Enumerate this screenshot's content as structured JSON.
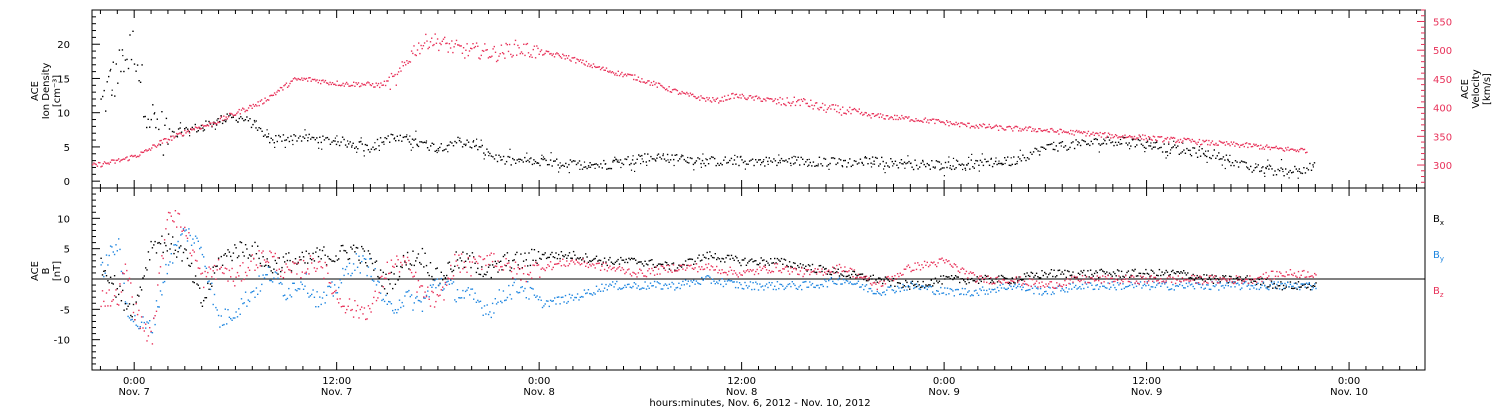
{
  "colors": {
    "black": "#000000",
    "red": "#e8325a",
    "blue": "#1f86e0"
  },
  "xaxis": {
    "label": "hours:minutes, Nov. 6, 2012 - Nov. 10, 2012",
    "ticks": [
      {
        "hours": 0,
        "time": "0:00",
        "day": "Nov. 7"
      },
      {
        "hours": 12,
        "time": "12:00",
        "day": "Nov. 7"
      },
      {
        "hours": 24,
        "time": "0:00",
        "day": "Nov. 8"
      },
      {
        "hours": 36,
        "time": "12:00",
        "day": "Nov. 8"
      },
      {
        "hours": 48,
        "time": "0:00",
        "day": "Nov. 9"
      },
      {
        "hours": 60,
        "time": "12:00",
        "day": "Nov. 9"
      },
      {
        "hours": 72,
        "time": "0:00",
        "day": "Nov. 10"
      }
    ]
  },
  "chart_data": [
    {
      "type": "scatter",
      "panel": "top",
      "xlim_hours": [
        -2.5,
        76.5
      ],
      "ylabel_left": [
        "ACE",
        "Ion Density",
        "[cm⁻³]"
      ],
      "ylabel_right": [
        "ACE",
        "Velocity",
        "[km/s]"
      ],
      "ylim_left": [
        -1,
        25
      ],
      "yticks_left": [
        0,
        5,
        10,
        15,
        20
      ],
      "ylim_right": [
        260,
        570
      ],
      "yticks_right": [
        300,
        350,
        400,
        450,
        500,
        550
      ],
      "series": [
        {
          "axis": "left",
          "color": "black",
          "x_hours": [
            -2,
            -1.5,
            -1,
            -0.5,
            0,
            0.5,
            1,
            1.5,
            2,
            3,
            4,
            5,
            6,
            7,
            8,
            9,
            10,
            11,
            12,
            13,
            14,
            15,
            16,
            17,
            18,
            19,
            20,
            21,
            22,
            23,
            24,
            26,
            28,
            30,
            32,
            34,
            36,
            38,
            40,
            42,
            44,
            46,
            48,
            50,
            52,
            54,
            56,
            58,
            60,
            62,
            64,
            66,
            68,
            70
          ],
          "values": [
            11,
            14,
            16,
            18,
            20,
            13,
            9,
            7.5,
            7,
            7.5,
            8,
            9,
            9.5,
            8.5,
            6,
            6.5,
            6.5,
            6,
            6,
            5.5,
            5,
            6.5,
            6,
            5.5,
            5,
            6,
            5.5,
            4,
            3,
            3,
            2.8,
            2.5,
            2.5,
            3.5,
            3.5,
            3,
            3,
            3,
            3,
            2.8,
            3,
            2.5,
            2.5,
            2.5,
            3,
            5,
            5.5,
            6,
            5.5,
            4.5,
            4,
            2,
            1.5,
            2.2
          ]
        },
        {
          "axis": "right",
          "color": "red",
          "x_hours": [
            -2.5,
            -1.5,
            -0.5,
            0.5,
            1.5,
            2.5,
            3.5,
            4.5,
            5.5,
            6.5,
            7.5,
            8.5,
            9.5,
            10.5,
            11.5,
            12.5,
            13.5,
            14.5,
            15.5,
            16.5,
            17.5,
            18.5,
            19.5,
            20.5,
            21.5,
            22.5,
            23.5,
            24.5,
            25.5,
            26.5,
            27.5,
            28.5,
            29.5,
            30.5,
            31.5,
            32.5,
            33.5,
            34.5,
            35.5,
            36.5,
            37.5,
            38.5,
            39.5,
            40.5,
            41.5,
            42.5,
            43.5,
            44.5,
            45.5,
            46.5,
            47.5,
            48.5,
            49.5,
            50.5,
            51.5,
            52.5,
            53.5,
            54.5,
            55.5,
            56.5,
            57.5,
            58.5,
            59.5,
            60.5,
            61.5,
            62.5,
            63.5,
            64.5,
            65.5,
            66.5,
            67.5,
            68.5,
            69.5
          ],
          "values": [
            300,
            305,
            312,
            322,
            340,
            352,
            365,
            372,
            385,
            398,
            410,
            430,
            450,
            450,
            445,
            442,
            442,
            440,
            450,
            500,
            520,
            510,
            500,
            500,
            495,
            505,
            500,
            495,
            490,
            480,
            470,
            462,
            455,
            445,
            435,
            425,
            418,
            413,
            422,
            418,
            415,
            410,
            412,
            402,
            398,
            393,
            388,
            385,
            383,
            380,
            377,
            373,
            370,
            368,
            365,
            364,
            363,
            360,
            358,
            356,
            353,
            351,
            350,
            347,
            345,
            343,
            340,
            338,
            336,
            334,
            330,
            328,
            327
          ]
        }
      ]
    },
    {
      "type": "scatter",
      "panel": "bottom",
      "xlim_hours": [
        -2.5,
        76.5
      ],
      "ylabel_left": [
        "ACE",
        "B",
        "[nT]"
      ],
      "ylim_left": [
        -15,
        15
      ],
      "yticks_left": [
        -10,
        -5,
        0,
        5,
        10
      ],
      "reference_line": 0,
      "series": [
        {
          "name": "B",
          "sub": "x",
          "color": "black",
          "x_hours": [
            -2,
            -1.5,
            -1,
            -0.5,
            0,
            1,
            2,
            3,
            4,
            5,
            6,
            7,
            8,
            9,
            10,
            11,
            12,
            13,
            14,
            15,
            16,
            17,
            18,
            19,
            20,
            21,
            22,
            23,
            24,
            26,
            28,
            30,
            32,
            34,
            36,
            38,
            40,
            42,
            44,
            46,
            48,
            50,
            52,
            54,
            56,
            58,
            60,
            62,
            64,
            66,
            68,
            70
          ],
          "values": [
            2,
            1,
            -2,
            -4,
            -5,
            6,
            6,
            4,
            -4,
            3,
            5,
            5,
            2,
            3,
            3,
            4,
            4,
            5,
            3,
            -1,
            3,
            4,
            0,
            3,
            3,
            1,
            3,
            3,
            4,
            4,
            3,
            3,
            2,
            4,
            3,
            3,
            2,
            1,
            0,
            -1,
            0,
            0,
            0,
            1,
            1,
            1,
            1,
            1,
            0,
            0,
            -1,
            -1
          ]
        },
        {
          "name": "B",
          "sub": "y",
          "color": "blue",
          "x_hours": [
            -2,
            -1.5,
            -1,
            -0.5,
            0,
            1,
            2,
            3,
            4,
            5,
            6,
            7,
            8,
            9,
            10,
            11,
            12,
            13,
            14,
            15,
            16,
            17,
            18,
            19,
            20,
            21,
            22,
            23,
            24,
            26,
            28,
            30,
            32,
            34,
            36,
            38,
            40,
            42,
            44,
            46,
            48,
            50,
            52,
            54,
            56,
            58,
            60,
            62,
            64,
            66,
            68,
            70
          ],
          "values": [
            1,
            4,
            6,
            -4,
            -7,
            -8,
            3,
            8,
            5,
            -7,
            -5,
            -2,
            1,
            -2,
            0,
            -4,
            -1,
            3,
            2,
            -5,
            -3,
            -4,
            0,
            -2,
            -3,
            -5,
            -2,
            -1,
            -4,
            -3,
            -1,
            -1,
            -1,
            0,
            -1,
            -1,
            -1,
            0,
            -2,
            -1,
            -2,
            -2,
            -1,
            -2,
            -1,
            -1,
            -1,
            -1,
            -1,
            -1,
            -1,
            -1
          ]
        },
        {
          "name": "B",
          "sub": "z",
          "color": "red",
          "x_hours": [
            -2,
            -1.5,
            -1,
            -0.5,
            0,
            1,
            2,
            3,
            4,
            5,
            6,
            7,
            8,
            9,
            10,
            11,
            12,
            13,
            14,
            15,
            16,
            17,
            18,
            19,
            20,
            21,
            22,
            23,
            24,
            26,
            28,
            30,
            32,
            34,
            36,
            38,
            40,
            42,
            44,
            46,
            48,
            50,
            52,
            54,
            56,
            58,
            60,
            62,
            64,
            66,
            68,
            70
          ],
          "values": [
            -3,
            -3,
            -3,
            2,
            -5,
            -10,
            12,
            8,
            0,
            2,
            0,
            3,
            4,
            1,
            2,
            3,
            -3,
            -5,
            -5,
            2,
            3,
            -2,
            -4,
            3,
            2,
            4,
            2,
            1,
            2,
            3,
            2,
            1,
            2,
            2,
            1,
            2,
            1,
            2,
            -1,
            2,
            3,
            0,
            0,
            -1,
            0,
            0,
            0,
            0,
            0,
            0,
            1,
            1
          ]
        }
      ]
    }
  ]
}
